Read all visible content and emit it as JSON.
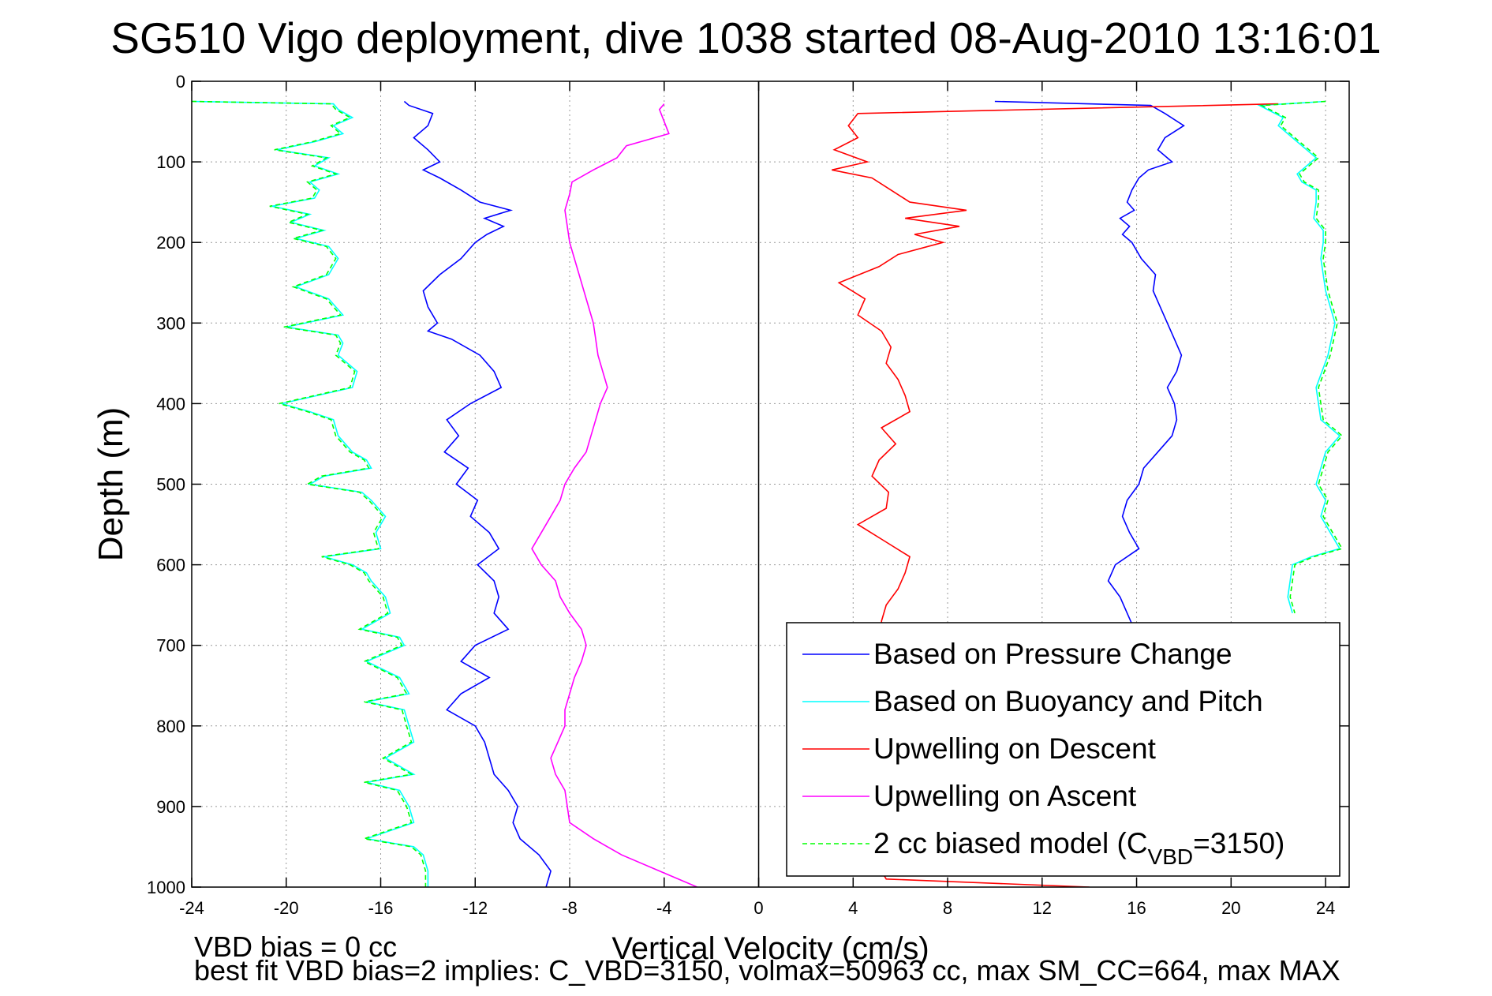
{
  "title": "SG510 Vigo deployment, dive 1038 started 08-Aug-2010 13:16:01",
  "footer": {
    "line1": "VBD bias = 0 cc",
    "line2": "best fit VBD bias=2 implies: C_VBD=3150, volmax=50963 cc, max SM_CC=664, max MAX"
  },
  "chart_data": {
    "type": "line",
    "xlabel": "Vertical Velocity (cm/s)",
    "ylabel": "Depth (m)",
    "xlim": [
      -24,
      25
    ],
    "ylim": [
      1000,
      0
    ],
    "y_reversed": true,
    "xticks": [
      -24,
      -20,
      -16,
      -12,
      -8,
      -4,
      0,
      4,
      8,
      12,
      16,
      20,
      24
    ],
    "yticks": [
      0,
      100,
      200,
      300,
      400,
      500,
      600,
      700,
      800,
      900,
      1000
    ],
    "grid": true,
    "legend_position": "bottom-right",
    "colors": {
      "pressure": "#0000ff",
      "buoyancy": "#00ffff",
      "upw_descent": "#ff0000",
      "upw_ascent": "#ff00ff",
      "model": "#00ff00"
    },
    "legend": [
      {
        "label": "Based on Pressure Change",
        "color": "#0000ff",
        "dash": false
      },
      {
        "label": "Based on Buoyancy and Pitch",
        "color": "#00ffff",
        "dash": false
      },
      {
        "label": "Upwelling on Descent",
        "color": "#ff0000",
        "dash": false
      },
      {
        "label": "Upwelling on Ascent",
        "color": "#ff00ff",
        "dash": false
      },
      {
        "label_prefix": "2 cc biased model (C",
        "label_sub": "VBD",
        "label_suffix": "=3150)",
        "color": "#00ff00",
        "dash": true
      }
    ],
    "series": [
      {
        "name": "Based on Pressure Change",
        "key": "pressure",
        "depth": [
          25,
          30,
          40,
          55,
          70,
          85,
          100,
          110,
          120,
          135,
          150,
          160,
          170,
          180,
          190,
          200,
          220,
          240,
          260,
          280,
          300,
          310,
          320,
          340,
          360,
          380,
          400,
          420,
          440,
          460,
          480,
          500,
          520,
          540,
          560,
          580,
          600,
          620,
          640,
          660,
          680,
          700,
          720,
          740,
          760,
          780,
          800,
          820,
          840,
          860,
          880,
          900,
          920,
          940,
          960,
          980,
          1000
        ],
        "vdesc": [
          -15,
          -14.8,
          -13.8,
          -14,
          -14.6,
          -14,
          -13.5,
          -14.2,
          -13.5,
          -12.6,
          -11.8,
          -10.5,
          -11.6,
          -10.8,
          -11.5,
          -12,
          -12.6,
          -13.5,
          -14.2,
          -14,
          -13.6,
          -14,
          -13,
          -11.8,
          -11.2,
          -10.9,
          -12.2,
          -13.2,
          -12.7,
          -13.3,
          -12.3,
          -12.8,
          -11.9,
          -12.2,
          -11.4,
          -11,
          -11.9,
          -11.2,
          -11,
          -11.2,
          -10.6,
          -12,
          -12.6,
          -11.4,
          -12.6,
          -13.2,
          -12,
          -11.6,
          -11.4,
          -11.2,
          -10.6,
          -10.2,
          -10.4,
          -10.1,
          -9.3,
          -8.8,
          -9
        ],
        "dasc": [
          25,
          30,
          40,
          55,
          70,
          85,
          100,
          110,
          120,
          135,
          150,
          160,
          170,
          180,
          190,
          200,
          220,
          240,
          260,
          280,
          300,
          320,
          340,
          360,
          380,
          400,
          420,
          440,
          460,
          480,
          500,
          520,
          540,
          560,
          580,
          600,
          620,
          640,
          660,
          680
        ],
        "vasc": [
          10,
          16.6,
          17.2,
          18,
          17.2,
          16.9,
          17.5,
          16.5,
          16.1,
          15.8,
          15.6,
          15.9,
          15.3,
          15.7,
          15.4,
          15.8,
          16.2,
          16.8,
          16.7,
          17,
          17.3,
          17.6,
          17.9,
          17.7,
          17.3,
          17.6,
          17.7,
          17.5,
          16.9,
          16.3,
          16.1,
          15.6,
          15.4,
          15.7,
          16.1,
          15.1,
          14.8,
          15.3,
          15.6,
          15.9
        ]
      },
      {
        "name": "Based on Buoyancy and Pitch",
        "key": "buoyancy",
        "depth": [
          25,
          28,
          35,
          45,
          55,
          65,
          75,
          85,
          95,
          105,
          115,
          125,
          135,
          145,
          155,
          165,
          175,
          185,
          195,
          205,
          220,
          240,
          255,
          270,
          290,
          305,
          315,
          325,
          340,
          360,
          380,
          400,
          410,
          420,
          440,
          460,
          470,
          480,
          490,
          500,
          510,
          520,
          540,
          560,
          580,
          590,
          600,
          610,
          620,
          640,
          660,
          680,
          690,
          700,
          720,
          740,
          760,
          770,
          780,
          800,
          820,
          840,
          860,
          870,
          880,
          900,
          920,
          940,
          950,
          960,
          980,
          1000
        ],
        "vdesc": [
          -24,
          -18,
          -17.8,
          -17.2,
          -18,
          -17.6,
          -18.8,
          -20.4,
          -18.2,
          -18.8,
          -17.8,
          -19,
          -18.6,
          -18.8,
          -20.6,
          -19,
          -19.8,
          -18.4,
          -19.6,
          -18.2,
          -17.8,
          -18.2,
          -19.6,
          -18.2,
          -17.6,
          -20,
          -17.8,
          -17.6,
          -17.8,
          -17,
          -17.2,
          -20.2,
          -19,
          -18,
          -17.8,
          -17.2,
          -16.6,
          -16.4,
          -18.4,
          -19,
          -16.8,
          -16.4,
          -15.8,
          -16.2,
          -16,
          -18.4,
          -17.2,
          -16.6,
          -16.4,
          -15.8,
          -15.6,
          -16.8,
          -15.2,
          -15,
          -16.6,
          -15.2,
          -14.8,
          -16.6,
          -15,
          -14.8,
          -14.6,
          -15.8,
          -14.6,
          -16.6,
          -15.2,
          -14.8,
          -14.6,
          -16.6,
          -14.6,
          -14.2,
          -14,
          -14
        ],
        "dasc": [
          25,
          30,
          45,
          55,
          70,
          85,
          95,
          105,
          115,
          125,
          135,
          150,
          170,
          185,
          200,
          220,
          260,
          300,
          340,
          380,
          420,
          440,
          460,
          480,
          500,
          520,
          540,
          560,
          580,
          590,
          600,
          620,
          640,
          660
        ],
        "vasc": [
          24,
          21.2,
          22.2,
          22,
          22.6,
          23.2,
          23.6,
          23.2,
          22.8,
          23,
          23.6,
          23.6,
          23.5,
          23.9,
          23.9,
          23.8,
          24,
          24.4,
          24.1,
          23.6,
          23.8,
          24.6,
          24,
          23.8,
          23.6,
          24,
          23.8,
          24.2,
          24.6,
          23.4,
          22.6,
          22.5,
          22.4,
          22.6
        ]
      },
      {
        "name": "Upwelling on Descent",
        "key": "upw_descent",
        "depth": [
          28,
          40,
          55,
          70,
          85,
          100,
          110,
          120,
          135,
          150,
          160,
          170,
          180,
          190,
          200,
          215,
          230,
          250,
          270,
          290,
          310,
          330,
          350,
          370,
          390,
          410,
          430,
          450,
          470,
          490,
          510,
          530,
          550,
          570,
          590,
          610,
          630,
          650,
          670,
          690,
          710,
          730,
          750,
          770,
          790,
          810,
          830,
          850,
          870,
          890,
          910,
          930,
          950,
          970,
          990,
          1000
        ],
        "v": [
          22,
          4.2,
          3.8,
          4.2,
          3.2,
          4.6,
          3.1,
          4.8,
          5.6,
          6.4,
          8.8,
          6.2,
          8.5,
          6.6,
          7.8,
          5.9,
          5.1,
          3.4,
          4.5,
          4.2,
          5.2,
          5.6,
          5.4,
          5.9,
          6.2,
          6.4,
          5.2,
          5.8,
          5.1,
          4.8,
          5.5,
          5.4,
          4.2,
          5.3,
          6.4,
          6.2,
          5.9,
          5.4,
          5.2,
          5.3,
          5.8,
          6.1,
          5.6,
          5.4,
          5.8,
          6.1,
          5.9,
          5.5,
          5.1,
          6.2,
          5.2,
          5.3,
          5.9,
          5.0,
          5.4,
          14
        ]
      },
      {
        "name": "Upwelling on Ascent",
        "key": "upw_ascent",
        "depth": [
          28,
          35,
          50,
          65,
          80,
          95,
          110,
          125,
          140,
          160,
          180,
          200,
          220,
          240,
          260,
          280,
          300,
          320,
          340,
          360,
          380,
          400,
          420,
          440,
          460,
          480,
          500,
          520,
          540,
          560,
          580,
          600,
          620,
          640,
          660,
          680,
          700,
          720,
          740,
          760,
          780,
          800,
          820,
          840,
          860,
          880,
          900,
          920,
          940,
          960,
          980,
          1000
        ],
        "v": [
          -4,
          -4.2,
          -4,
          -3.8,
          -5.6,
          -6,
          -7,
          -7.9,
          -8,
          -8.2,
          -8.1,
          -8,
          -7.8,
          -7.6,
          -7.4,
          -7.2,
          -7,
          -6.9,
          -6.8,
          -6.6,
          -6.4,
          -6.7,
          -6.9,
          -7.1,
          -7.3,
          -7.8,
          -8.2,
          -8.4,
          -8.8,
          -9.2,
          -9.6,
          -9.2,
          -8.6,
          -8.4,
          -8,
          -7.5,
          -7.3,
          -7.5,
          -7.8,
          -8,
          -8.2,
          -8.2,
          -8.5,
          -8.8,
          -8.6,
          -8.2,
          -8.1,
          -8,
          -7,
          -5.8,
          -4.2,
          -2.6
        ]
      },
      {
        "name": "2 cc biased model (C_VBD=3150)",
        "key": "model",
        "dash": true,
        "depth": [
          25,
          28,
          35,
          45,
          55,
          65,
          75,
          85,
          95,
          105,
          115,
          125,
          135,
          145,
          155,
          165,
          175,
          185,
          195,
          205,
          220,
          240,
          255,
          270,
          290,
          305,
          315,
          325,
          340,
          360,
          380,
          400,
          410,
          420,
          440,
          460,
          470,
          480,
          490,
          500,
          510,
          520,
          540,
          560,
          580,
          590,
          600,
          610,
          620,
          640,
          660,
          680,
          690,
          700,
          720,
          740,
          760,
          770,
          780,
          800,
          820,
          840,
          860,
          870,
          880,
          900,
          920,
          940,
          950,
          960,
          980,
          1000
        ],
        "vdesc": [
          -24,
          -18.1,
          -17.9,
          -17.3,
          -18.1,
          -17.7,
          -18.9,
          -20.5,
          -18.3,
          -18.9,
          -17.9,
          -19.1,
          -18.7,
          -18.9,
          -20.7,
          -19.1,
          -19.9,
          -18.5,
          -19.7,
          -18.3,
          -17.9,
          -18.3,
          -19.7,
          -18.3,
          -17.7,
          -20.1,
          -17.9,
          -17.7,
          -17.9,
          -17.1,
          -17.3,
          -20.3,
          -19.1,
          -18.1,
          -17.9,
          -17.3,
          -16.7,
          -16.5,
          -18.5,
          -19.1,
          -16.9,
          -16.5,
          -15.9,
          -16.3,
          -16.1,
          -18.5,
          -17.3,
          -16.7,
          -16.5,
          -15.9,
          -15.7,
          -16.9,
          -15.3,
          -15.1,
          -16.7,
          -15.3,
          -14.9,
          -16.7,
          -15.1,
          -14.9,
          -14.7,
          -15.9,
          -14.7,
          -16.7,
          -15.3,
          -14.9,
          -14.7,
          -16.7,
          -14.7,
          -14.3,
          -14.1,
          -14.1
        ],
        "dasc": [
          25,
          30,
          45,
          55,
          70,
          85,
          95,
          105,
          115,
          125,
          135,
          150,
          170,
          185,
          200,
          220,
          260,
          300,
          340,
          380,
          420,
          440,
          460,
          480,
          500,
          520,
          540,
          560,
          580,
          590,
          600,
          620,
          640,
          660
        ],
        "vasc": [
          24,
          21.3,
          22.3,
          22.1,
          22.7,
          23.3,
          23.7,
          23.3,
          22.9,
          23.1,
          23.7,
          23.7,
          23.6,
          24,
          24,
          23.9,
          24.1,
          24.5,
          24.2,
          23.7,
          23.9,
          24.7,
          24.1,
          23.9,
          23.7,
          24.1,
          23.9,
          24.3,
          24.7,
          23.5,
          22.7,
          22.6,
          22.5,
          22.7
        ]
      }
    ]
  }
}
